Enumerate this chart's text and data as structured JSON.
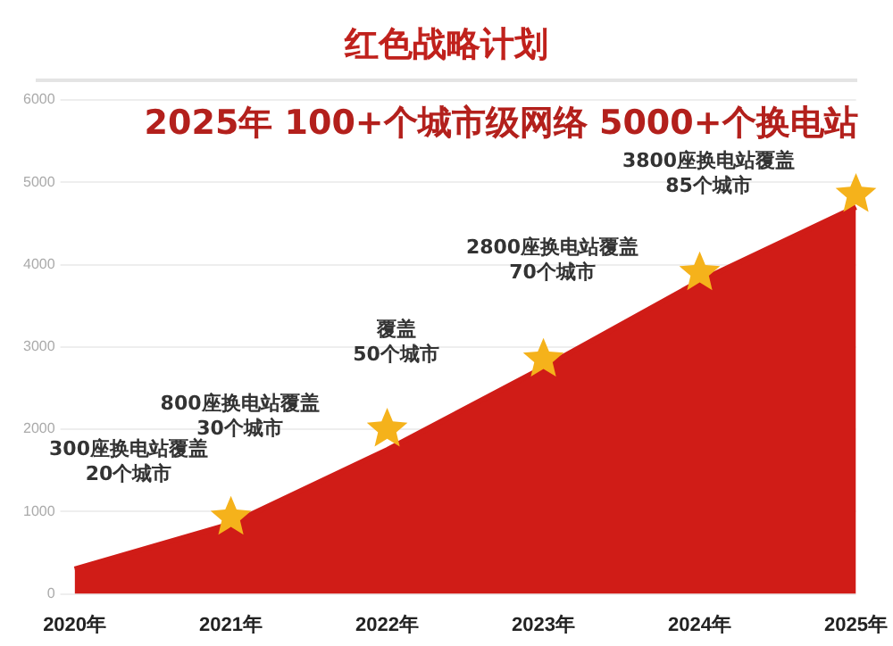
{
  "chart_data": {
    "type": "area",
    "title": "红色战略计划",
    "subtitle": "2025年 100+个城市级网络 5000+个换电站",
    "categories": [
      "2020年",
      "2021年",
      "2022年",
      "2023年",
      "2024年",
      "2025年"
    ],
    "series": [
      {
        "color": "#d01c17",
        "values": [
          300,
          850,
          1750,
          2750,
          3800,
          4700
        ]
      },
      {
        "type": "scatter",
        "color": "#f5b21b",
        "marker": "star",
        "values": [
          null,
          930,
          2000,
          2850,
          3900,
          4850
        ]
      }
    ],
    "ylim": [
      0,
      6000
    ],
    "yticks": [
      0,
      1000,
      2000,
      3000,
      4000,
      5000,
      6000
    ],
    "grid": "y",
    "legend": false,
    "annotations": [
      "300座换电站覆盖20个城市",
      "800座换电站覆盖30个城市",
      "覆盖50个城市",
      "2800座换电站覆盖70个城市",
      "3800座换电站覆盖85个城市"
    ]
  }
}
